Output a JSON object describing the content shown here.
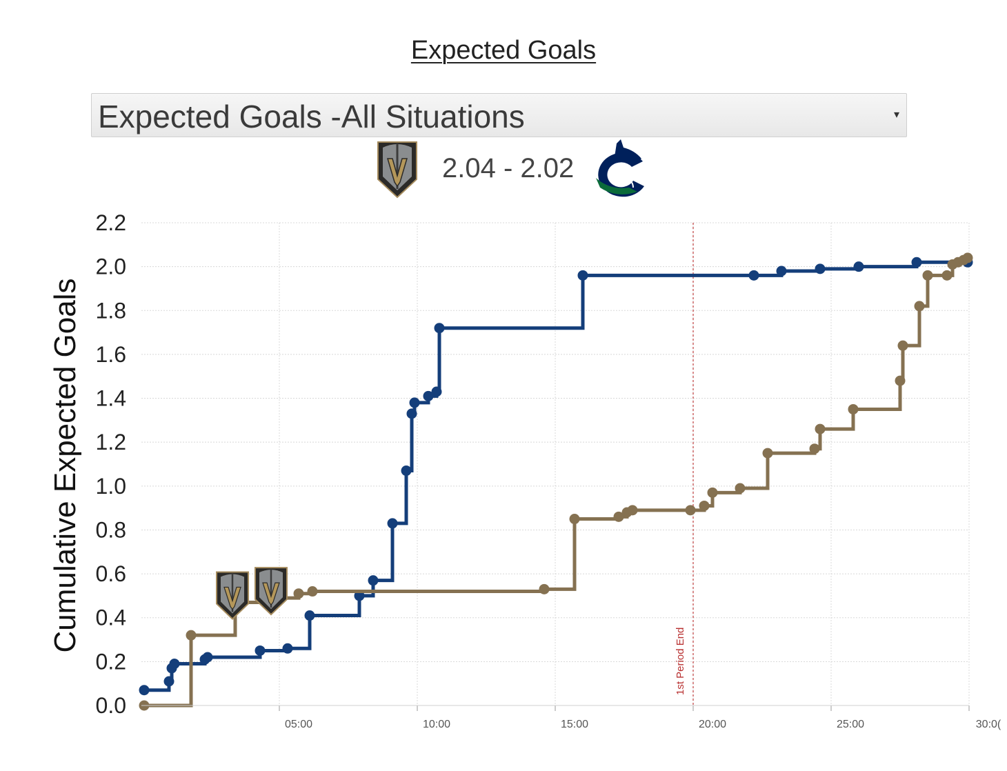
{
  "page_title": "Expected Goals",
  "situation_select": {
    "value": "Expected Goals -All Situations",
    "arrow": "▾"
  },
  "scoreboard": {
    "score": "2.04 - 2.02",
    "home_logo": "golden-knights-helmet-icon",
    "away_logo": "canucks-orca-icon"
  },
  "colors": {
    "vgk": "#857151",
    "van": "#143e7a",
    "grid": "#d8d8d8",
    "period_line": "#c44a4a"
  },
  "chart_data": {
    "type": "line",
    "step": true,
    "ylabel": "Cumulative Expected Goals",
    "xlabel": "",
    "ylim": [
      0,
      2.2
    ],
    "xlim": [
      0,
      30
    ],
    "yticks": [
      "0.0",
      "0.2",
      "0.4",
      "0.6",
      "0.8",
      "1.0",
      "1.2",
      "1.4",
      "1.6",
      "1.8",
      "2.0",
      "2.2"
    ],
    "xticks": [
      {
        "value": 5,
        "label": "05:00"
      },
      {
        "value": 10,
        "label": "10:00"
      },
      {
        "value": 15,
        "label": "15:00"
      },
      {
        "value": 20,
        "label": "20:00"
      },
      {
        "value": 25,
        "label": "25:00"
      },
      {
        "value": 30,
        "label": "30:0("
      }
    ],
    "grid": true,
    "annotations": [
      {
        "x": 20,
        "label": "1st Period End"
      }
    ],
    "series": [
      {
        "team": "van",
        "points": [
          [
            0.1,
            0.07
          ],
          [
            1.0,
            0.11
          ],
          [
            1.1,
            0.17
          ],
          [
            1.2,
            0.19
          ],
          [
            2.3,
            0.21
          ],
          [
            2.4,
            0.22
          ],
          [
            4.3,
            0.25
          ],
          [
            5.3,
            0.26
          ],
          [
            6.1,
            0.41
          ],
          [
            7.9,
            0.5
          ],
          [
            8.4,
            0.57
          ],
          [
            9.1,
            0.83
          ],
          [
            9.6,
            1.07
          ],
          [
            9.8,
            1.33
          ],
          [
            9.9,
            1.38
          ],
          [
            10.4,
            1.41
          ],
          [
            10.7,
            1.43
          ],
          [
            10.8,
            1.72
          ],
          [
            16.0,
            1.96
          ],
          [
            22.2,
            1.96
          ],
          [
            23.2,
            1.98
          ],
          [
            24.6,
            1.99
          ],
          [
            26.0,
            2.0
          ],
          [
            28.1,
            2.02
          ],
          [
            29.95,
            2.02
          ]
        ]
      },
      {
        "team": "vgk",
        "points": [
          [
            0.1,
            0.0
          ],
          [
            1.8,
            0.32
          ],
          [
            3.4,
            0.47
          ],
          [
            4.5,
            0.49
          ],
          [
            5.7,
            0.51
          ],
          [
            6.2,
            0.52
          ],
          [
            14.6,
            0.53
          ],
          [
            15.7,
            0.85
          ],
          [
            17.3,
            0.86
          ],
          [
            17.6,
            0.88
          ],
          [
            17.8,
            0.89
          ],
          [
            19.9,
            0.89
          ],
          [
            20.4,
            0.91
          ],
          [
            20.7,
            0.97
          ],
          [
            21.7,
            0.99
          ],
          [
            22.7,
            1.15
          ],
          [
            24.4,
            1.17
          ],
          [
            24.6,
            1.26
          ],
          [
            25.8,
            1.35
          ],
          [
            27.5,
            1.48
          ],
          [
            27.6,
            1.64
          ],
          [
            28.2,
            1.82
          ],
          [
            28.5,
            1.96
          ],
          [
            29.2,
            1.96
          ],
          [
            29.4,
            2.01
          ],
          [
            29.6,
            2.02
          ],
          [
            29.8,
            2.03
          ],
          [
            29.95,
            2.04
          ]
        ]
      }
    ],
    "goals": [
      {
        "team": "vgk",
        "x": 3.3,
        "y": 0.47
      },
      {
        "team": "vgk",
        "x": 4.7,
        "y": 0.49
      }
    ]
  }
}
